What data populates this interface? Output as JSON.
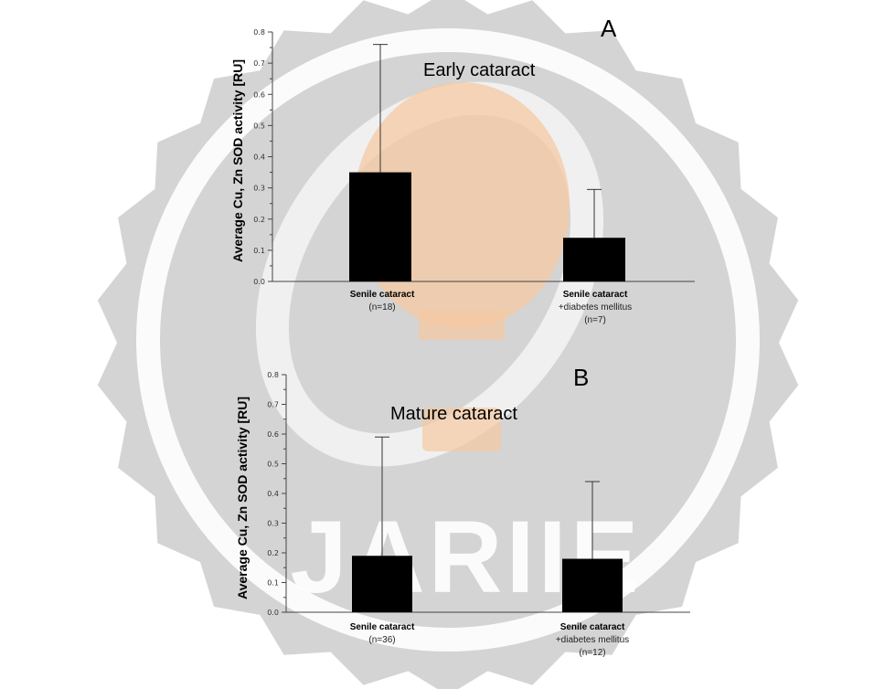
{
  "chart_data": [
    {
      "type": "bar",
      "panel": "A",
      "title": "Early cataract",
      "ylabel": "Average  Cu, Zn SOD activity [RU]",
      "ylim": [
        0,
        0.8
      ],
      "yticks": [
        "0.0",
        "0.1",
        "0.2",
        "0.3",
        "0.4",
        "0.5",
        "0.6",
        "0.7",
        "0.8"
      ],
      "categories": [
        {
          "main": "Senile cataract",
          "lines": [
            "(n=18)"
          ]
        },
        {
          "main": "Senile cataract",
          "lines": [
            "+diabetes mellitus",
            "(n=7)"
          ]
        }
      ],
      "values": [
        0.35,
        0.14
      ],
      "error_upper": [
        0.76,
        0.295
      ],
      "grid": false,
      "bar_color": "#000000"
    },
    {
      "type": "bar",
      "panel": "B",
      "title": "Mature cataract",
      "ylabel": "Average  Cu, Zn SOD activity [RU]",
      "ylim": [
        0,
        0.8
      ],
      "yticks": [
        "0.0",
        "0.1",
        "0.2",
        "0.3",
        "0.4",
        "0.5",
        "0.6",
        "0.7",
        "0.8"
      ],
      "categories": [
        {
          "main": "Senile cataract",
          "lines": [
            "(n=36)"
          ]
        },
        {
          "main": "Senile cataract",
          "lines": [
            "+diabetes mellitus",
            "(n=12)"
          ]
        }
      ],
      "values": [
        0.19,
        0.18
      ],
      "error_upper": [
        0.59,
        0.44
      ],
      "grid": false,
      "bar_color": "#000000"
    }
  ],
  "watermark": {
    "text": "JARIIE",
    "colors": {
      "badge": "#d4d4d4",
      "ring": "#ffffff",
      "bulb": "#f6c9a3"
    }
  }
}
